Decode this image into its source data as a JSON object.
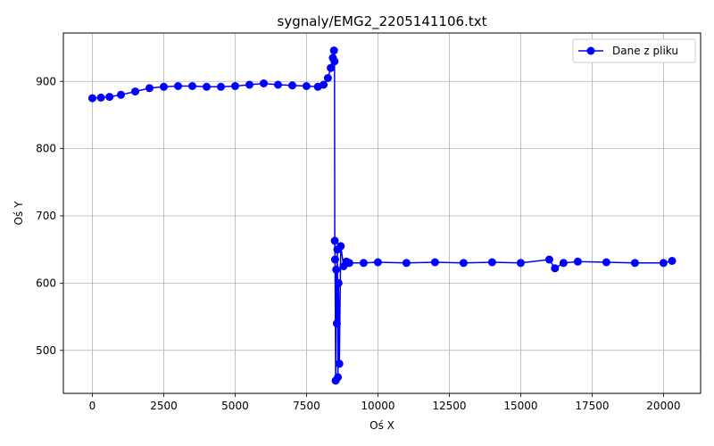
{
  "chart_data": {
    "type": "line",
    "title": "sygnaly/EMG2_2205141106.txt",
    "xlabel": "Oś X",
    "ylabel": "Oś Y",
    "xlim": [
      -1015,
      21300
    ],
    "ylim": [
      436,
      972
    ],
    "xticks": [
      0,
      2500,
      5000,
      7500,
      10000,
      12500,
      15000,
      17500,
      20000
    ],
    "yticks": [
      500,
      600,
      700,
      800,
      900
    ],
    "grid": true,
    "legend_position": "top-right",
    "series": [
      {
        "name": "Dane z pliku",
        "color": "#0000ff",
        "marker": "circle",
        "x": [
          0,
          300,
          600,
          1000,
          1500,
          2000,
          2500,
          3000,
          3500,
          4000,
          4500,
          5000,
          5500,
          6000,
          6500,
          7000,
          7500,
          7900,
          8100,
          8250,
          8350,
          8420,
          8460,
          8480,
          8490,
          8500,
          8520,
          8540,
          8560,
          8580,
          8600,
          8620,
          8650,
          8700,
          8800,
          8900,
          9000,
          9500,
          10000,
          11000,
          12000,
          13000,
          14000,
          15000,
          16000,
          16200,
          16500,
          17000,
          18000,
          19000,
          20000,
          20300
        ],
        "y": [
          875,
          876,
          877,
          880,
          885,
          890,
          892,
          893,
          893,
          892,
          892,
          893,
          895,
          897,
          895,
          894,
          893,
          892,
          895,
          905,
          920,
          935,
          946,
          930,
          663,
          635,
          455,
          620,
          540,
          650,
          460,
          600,
          480,
          655,
          625,
          632,
          630,
          630,
          631,
          630,
          631,
          630,
          631,
          630,
          635,
          622,
          630,
          632,
          631,
          630,
          630,
          633
        ]
      }
    ]
  }
}
